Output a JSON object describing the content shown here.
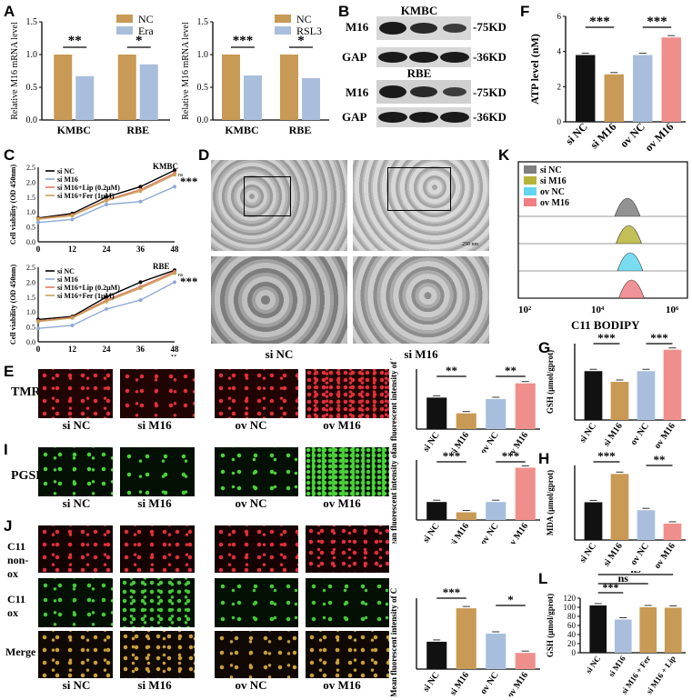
{
  "panel_letters": {
    "A": "A",
    "B": "B",
    "C": "C",
    "D": "D",
    "E": "E",
    "F": "F",
    "G": "G",
    "H": "H",
    "I": "I",
    "J": "J",
    "K": "K",
    "L": "L"
  },
  "common": {
    "si_nc": "si NC",
    "si_m16": "si M16",
    "ov_nc": "ov NC",
    "ov_m16": "ov M16",
    "sig3": "***",
    "sig2": "**",
    "sig1": "*",
    "ns": "ns"
  },
  "panelB": {
    "kmbc": "KMBC",
    "rbe": "RBE",
    "m16": "M16",
    "gap": "GAP",
    "kd75": "-75KD",
    "kd36": "-36KD"
  },
  "panelC": {
    "ylabel": "Cell viability (OD 450nm)",
    "legend": [
      "si NC",
      "si M16",
      "si M16+Lip (0.2μM)",
      "si M16+Fer (1μM)"
    ],
    "line_colors": [
      "#000000",
      "#8fa9d6",
      "#e07a5f",
      "#c9a15a"
    ],
    "top_title": "KMBC",
    "bottom_title": "RBE",
    "xlabel": "Hours",
    "xticks": [
      "0",
      "12",
      "24",
      "36",
      "48"
    ],
    "yticks": [
      "0.0",
      "0.5",
      "1.0",
      "1.5",
      "2.0",
      "2.5"
    ]
  },
  "panelD": {
    "scale": "250 nm",
    "labels": [
      "si NC",
      "si M16"
    ]
  },
  "panelK": {
    "legend": [
      "si NC",
      "si M16",
      "ov NC",
      "ov M16"
    ],
    "colors": [
      "#7f7f7f",
      "#b7b43a",
      "#62d6ef",
      "#ef7f84"
    ],
    "xlabel": "C11 BODIPY",
    "ticks": [
      "10²",
      "10⁴",
      "10⁶"
    ]
  },
  "micro": {
    "E_label": "TMRE",
    "I_label": "PGSK",
    "J_labels": [
      "C11 non-ox",
      "C11 ox",
      "Merge"
    ]
  },
  "colors": {
    "black": "#111111",
    "tan": "#c89a55",
    "blue": "#a9bedc",
    "pink": "#ef8f8b"
  },
  "chart_data": [
    {
      "panel": "A1",
      "type": "bar",
      "ylabel": "Relative M16 mRNA level",
      "categories": [
        "KMBC",
        "RBE"
      ],
      "series": [
        {
          "name": "NC",
          "values": [
            1.0,
            1.0
          ]
        },
        {
          "name": "Era",
          "values": [
            0.67,
            0.85
          ]
        }
      ],
      "ylim": [
        0,
        1.5
      ],
      "yticks": [
        "0.0",
        "0.5",
        "1.0",
        "1.5"
      ],
      "annotations": [
        "**",
        "*"
      ]
    },
    {
      "panel": "A2",
      "type": "bar",
      "ylabel": "Relative M16 mRNA level",
      "categories": [
        "KMBC",
        "RBE"
      ],
      "series": [
        {
          "name": "NC",
          "values": [
            1.0,
            1.0
          ]
        },
        {
          "name": "RSL3",
          "values": [
            0.68,
            0.64
          ]
        }
      ],
      "ylim": [
        0,
        1.5
      ],
      "yticks": [
        "0.0",
        "0.5",
        "1.0",
        "1.5"
      ],
      "annotations": [
        "***",
        "*"
      ]
    },
    {
      "panel": "F",
      "type": "bar",
      "ylabel": "ATP level (nM)",
      "categories": [
        "si NC",
        "si M16",
        "ov NC",
        "ov M16"
      ],
      "values": [
        3.8,
        2.7,
        3.8,
        4.8
      ],
      "ylim": [
        0,
        6
      ],
      "yticks": [
        "0",
        "2",
        "4",
        "6"
      ],
      "annotations": [
        "***",
        "***"
      ]
    },
    {
      "panel": "E",
      "type": "bar",
      "ylabel": "Mean fluorescent intensity of TMRE",
      "categories": [
        "si NC",
        "si M16",
        "ov NC",
        "ov M16"
      ],
      "values": [
        42,
        21,
        40,
        61
      ],
      "ylim": [
        0,
        80
      ],
      "annotations": [
        "**",
        "**"
      ]
    },
    {
      "panel": "I",
      "type": "bar",
      "ylabel": "Mean fluorescent intensity of PGSK",
      "categories": [
        "si NC",
        "si M16",
        "ov NC",
        "ov M16"
      ],
      "values": [
        21,
        9,
        21,
        61
      ],
      "ylim": [
        0,
        70
      ],
      "annotations": [
        "***",
        "***"
      ]
    },
    {
      "panel": "J",
      "type": "bar",
      "ylabel": "Mean fluorescent intensity of C11 ox",
      "categories": [
        "si NC",
        "si M16",
        "ov NC",
        "ov M16"
      ],
      "values": [
        27,
        60,
        35,
        16
      ],
      "ylim": [
        0,
        70
      ],
      "annotations": [
        "***",
        "*"
      ]
    },
    {
      "panel": "G",
      "type": "bar",
      "ylabel": "GSH (μmol/gprot)",
      "categories": [
        "si NC",
        "si M16",
        "ov NC",
        "ov M16"
      ],
      "values": [
        96,
        75,
        96,
        138
      ],
      "ylim": [
        0,
        150
      ],
      "annotations": [
        "***",
        "***"
      ]
    },
    {
      "panel": "H",
      "type": "bar",
      "ylabel": "MDA (μmol/gprot)",
      "categories": [
        "si NC",
        "si M16",
        "ov NC",
        "ov M16"
      ],
      "values": [
        0.76,
        1.33,
        0.6,
        0.33
      ],
      "ylim": [
        0,
        1.5
      ],
      "annotations": [
        "***",
        "**"
      ]
    },
    {
      "panel": "L",
      "type": "bar",
      "ylabel": "GSH (μmol/gprot)",
      "categories": [
        "si NC",
        "si M16",
        "si M16 + Fer",
        "si M16 + Lip"
      ],
      "values": [
        104,
        73,
        100,
        99
      ],
      "ylim": [
        0,
        120
      ],
      "yticks": [
        "0",
        "20",
        "40",
        "60",
        "80",
        "100",
        "120"
      ],
      "annotations": [
        "***",
        "ns",
        "ns"
      ]
    },
    {
      "panel": "C-top",
      "type": "line",
      "title": "KMBC",
      "x": [
        0,
        12,
        24,
        36,
        48
      ],
      "series": [
        {
          "name": "si NC",
          "values": [
            0.8,
            0.95,
            1.5,
            1.85,
            2.4
          ]
        },
        {
          "name": "si M16",
          "values": [
            0.65,
            0.75,
            1.25,
            1.35,
            1.85
          ]
        },
        {
          "name": "si M16+Lip (0.2μM)",
          "values": [
            0.78,
            0.9,
            1.4,
            1.75,
            2.3
          ]
        },
        {
          "name": "si M16+Fer (1μM)",
          "values": [
            0.76,
            0.88,
            1.38,
            1.7,
            2.25
          ]
        }
      ],
      "ylim": [
        0,
        2.5
      ],
      "annotations": [
        "***",
        "ns"
      ]
    },
    {
      "panel": "C-bottom",
      "type": "line",
      "title": "RBE",
      "x": [
        0,
        12,
        24,
        36,
        48
      ],
      "series": [
        {
          "name": "si NC",
          "values": [
            0.75,
            0.85,
            1.5,
            2.0,
            2.4
          ]
        },
        {
          "name": "si M16",
          "values": [
            0.45,
            0.55,
            1.1,
            1.4,
            2.0
          ]
        },
        {
          "name": "si M16+Lip (0.2μM)",
          "values": [
            0.7,
            0.82,
            1.4,
            1.85,
            2.35
          ]
        },
        {
          "name": "si M16+Fer (1μM)",
          "values": [
            0.68,
            0.8,
            1.35,
            1.8,
            2.3
          ]
        }
      ],
      "ylim": [
        0,
        2.5
      ],
      "annotations": [
        "***",
        "ns"
      ]
    }
  ]
}
